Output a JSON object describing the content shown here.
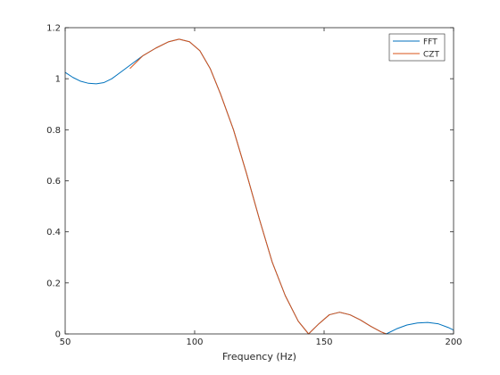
{
  "chart_data": {
    "type": "line",
    "title": "",
    "xlabel": "Frequency (Hz)",
    "ylabel": "",
    "xlim": [
      50,
      200
    ],
    "ylim": [
      0,
      1.2
    ],
    "xticks": [
      50,
      100,
      150,
      200
    ],
    "xtick_labels": [
      "50",
      "100",
      "150",
      "200"
    ],
    "yticks": [
      0,
      0.2,
      0.4,
      0.6,
      0.8,
      1,
      1.2
    ],
    "ytick_labels": [
      "0",
      "0.2",
      "0.4",
      "0.6",
      "0.8",
      "1",
      "1.2"
    ],
    "grid": false,
    "legend_position": "top-right",
    "series": [
      {
        "name": "FFT",
        "color": "#0072BD",
        "x": [
          50,
          53,
          56,
          59,
          62,
          65,
          68,
          72,
          76,
          80,
          85,
          90,
          94,
          98,
          102,
          106,
          110,
          115,
          120,
          125,
          130,
          135,
          140,
          144,
          148,
          152,
          156,
          160,
          164,
          168,
          172,
          174,
          178,
          182,
          186,
          190,
          194,
          198,
          200
        ],
        "y": [
          1.025,
          1.005,
          0.99,
          0.982,
          0.98,
          0.985,
          1.0,
          1.03,
          1.06,
          1.09,
          1.12,
          1.145,
          1.155,
          1.145,
          1.11,
          1.04,
          0.94,
          0.8,
          0.63,
          0.45,
          0.28,
          0.15,
          0.05,
          0.0,
          0.04,
          0.075,
          0.085,
          0.075,
          0.055,
          0.03,
          0.008,
          0.0,
          0.02,
          0.035,
          0.043,
          0.045,
          0.04,
          0.025,
          0.015
        ]
      },
      {
        "name": "CZT",
        "color": "#D95319",
        "x": [
          75,
          80,
          85,
          90,
          94,
          98,
          102,
          106,
          110,
          115,
          120,
          125,
          130,
          135,
          140,
          144,
          148,
          152,
          156,
          160,
          164,
          168,
          172,
          174
        ],
        "y": [
          1.04,
          1.09,
          1.12,
          1.145,
          1.155,
          1.145,
          1.11,
          1.04,
          0.94,
          0.8,
          0.63,
          0.45,
          0.28,
          0.15,
          0.05,
          0.0,
          0.04,
          0.075,
          0.085,
          0.075,
          0.055,
          0.03,
          0.008,
          0.0
        ]
      }
    ]
  }
}
